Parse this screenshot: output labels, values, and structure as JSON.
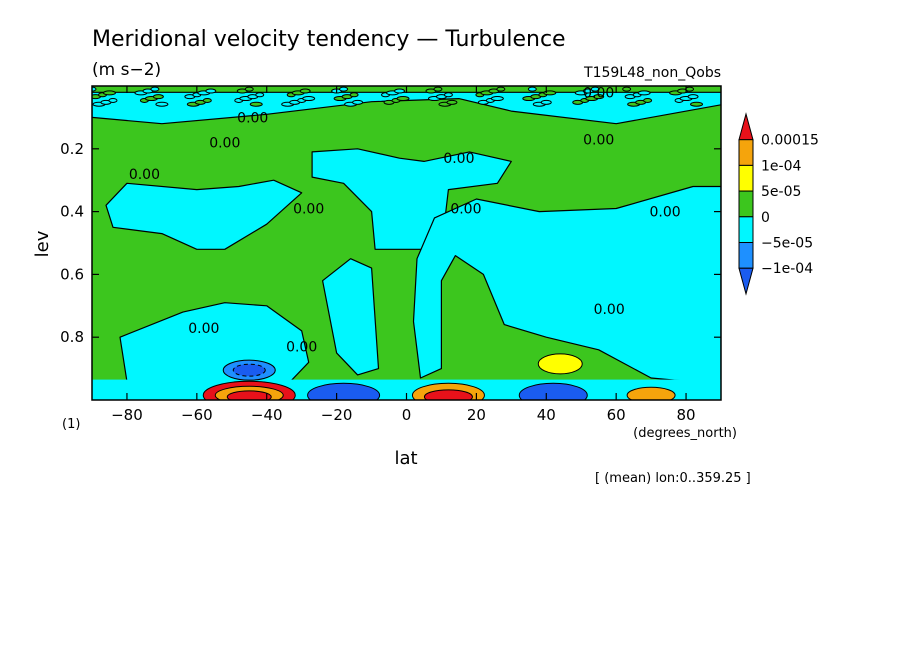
{
  "chart_data": {
    "type": "heatmap",
    "title": "Meridional velocity tendency — Turbulence",
    "units": "(m s−2)",
    "experiment": "T159L48_non_Qobs",
    "xlabel": "lat",
    "x_units": "(degrees_north)",
    "ylabel": "lev",
    "y_units": "(1)",
    "averaging_note": "[ (mean) lon:0..359.25 ]",
    "xlim": [
      -90,
      90
    ],
    "ylim": [
      0.0,
      1.0
    ],
    "y_inverted": true,
    "x_ticks": [
      -80,
      -60,
      -40,
      -20,
      0,
      20,
      40,
      60,
      80
    ],
    "y_ticks": [
      0.2,
      0.4,
      0.6,
      0.8
    ],
    "contour_label": "0.00",
    "colorbar": {
      "labels": [
        "0.00015",
        "1e-04",
        "5e-05",
        "0",
        "−5e-05",
        "−1e-04"
      ],
      "bins": [
        {
          "color": "#e8111a"
        },
        {
          "color": "#f5a40c"
        },
        {
          "color": "#ffff00"
        },
        {
          "color": "#3cc61e"
        },
        {
          "color": "#00f7ff"
        },
        {
          "color": "#1e90ff"
        },
        {
          "color": "#1a5cf0"
        }
      ]
    },
    "colors": {
      "positive_small": "#3cc61e",
      "negative_small": "#00f7ff",
      "negative_mid": "#1e90ff",
      "negative_strong": "#1a5cf0",
      "positive_mid": "#ffff00",
      "positive_high": "#f5a40c",
      "positive_max": "#e8111a"
    }
  }
}
